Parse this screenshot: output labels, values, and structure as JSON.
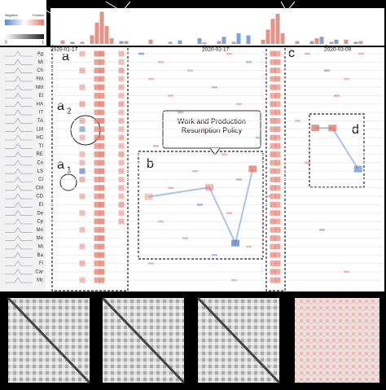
{
  "legend": {
    "negative": "Negative",
    "positive": "Positive",
    "scale_min": "0",
    "scale_max": "1"
  },
  "timeline": {
    "ylim": [
      0,
      50
    ],
    "positive": [
      0,
      0,
      5,
      0,
      0,
      0,
      3,
      0,
      12,
      30,
      45,
      25,
      8,
      0,
      0,
      4,
      0,
      0,
      0,
      0,
      6,
      0,
      0,
      0,
      3,
      0,
      0,
      0,
      0,
      0,
      0,
      2,
      0,
      0,
      4,
      0,
      0,
      3,
      0,
      0,
      5,
      0,
      0,
      6,
      20,
      35,
      42,
      15,
      0,
      0,
      4,
      0,
      0,
      0,
      8,
      0,
      0,
      3,
      0,
      0,
      6,
      0,
      0,
      4,
      0,
      0,
      0,
      0
    ],
    "negative": [
      0,
      0,
      0,
      0,
      3,
      0,
      0,
      0,
      0,
      0,
      0,
      0,
      0,
      0,
      4,
      0,
      0,
      0,
      0,
      0,
      0,
      0,
      0,
      0,
      0,
      0,
      5,
      0,
      0,
      0,
      8,
      0,
      0,
      0,
      0,
      10,
      0,
      0,
      15,
      0,
      12,
      0,
      0,
      0,
      0,
      0,
      0,
      0,
      0,
      0,
      0,
      0,
      0,
      4,
      0,
      10,
      0,
      0,
      6,
      0,
      0,
      0,
      3,
      0,
      0,
      0,
      0,
      0
    ]
  },
  "date_labels": [
    {
      "day": 0,
      "label": "2020-01-17"
    },
    {
      "day": 31,
      "label": "2020-02-17"
    },
    {
      "day": 56,
      "label": "2020-03-09"
    }
  ],
  "rows": [
    "Ag",
    "Mi",
    "Ch",
    "FM",
    "NM",
    "El",
    "HA",
    "IT",
    "TA",
    "LM",
    "HC",
    "TI",
    "RE",
    "Co",
    "LS",
    "CI",
    "CM",
    "CD",
    "El",
    "De",
    "Cp",
    "Mo",
    "Me",
    "Mi",
    "Ba",
    "Fi",
    "Car",
    "Mc"
  ],
  "columns": [
    {
      "day": 6,
      "values": [
        0.3,
        null,
        0.4,
        null,
        0.3,
        null,
        0.5,
        null,
        0.4,
        -0.5,
        0.3,
        null,
        0.3,
        0.3,
        -0.7,
        0.4,
        null,
        0.3,
        null,
        0.3,
        null,
        0.3,
        null,
        0.3,
        null,
        0.4,
        null,
        0.3
      ]
    },
    {
      "day": 9,
      "values": [
        0.7,
        0.6,
        0.7,
        0.6,
        0.7,
        0.6,
        0.7,
        0.6,
        0.7,
        0.6,
        0.7,
        0.6,
        0.7,
        0.6,
        0.7,
        0.6,
        0.7,
        0.6,
        0.7,
        0.6,
        0.7,
        0.6,
        0.7,
        0.6,
        0.7,
        0.6,
        0.7,
        0.6
      ]
    },
    {
      "day": 10,
      "values": [
        0.8,
        0.7,
        0.8,
        0.7,
        0.8,
        0.7,
        0.8,
        0.7,
        0.8,
        0.7,
        0.8,
        0.7,
        0.8,
        0.7,
        0.8,
        0.7,
        0.8,
        0.7,
        0.8,
        0.7,
        0.8,
        0.7,
        0.8,
        0.7,
        0.8,
        0.7,
        0.8,
        0.7
      ]
    },
    {
      "day": 14,
      "values": [
        0.4,
        0.3,
        0.5,
        0.3,
        0.4,
        0.3,
        0.5,
        0.3,
        0.4,
        0.3,
        0.4,
        0.3,
        0.5,
        0.3,
        0.4,
        0.3,
        0.4,
        0.3,
        0.5,
        0.3,
        0.4,
        null,
        null,
        null,
        null,
        null,
        null,
        null
      ]
    },
    {
      "day": 45,
      "values": [
        0.6,
        0.5,
        0.6,
        0.5,
        0.6,
        0.5,
        0.6,
        0.5,
        0.6,
        0.5,
        0.6,
        0.5,
        0.6,
        0.5,
        0.6,
        0.5,
        0.6,
        0.5,
        0.6,
        0.5,
        0.6,
        0.5,
        0.6,
        0.5,
        0.6,
        0.5,
        0.6,
        0.5
      ]
    },
    {
      "day": 46,
      "values": [
        0.5,
        0.6,
        0.5,
        0.6,
        0.5,
        0.6,
        0.5,
        0.6,
        0.5,
        0.6,
        0.5,
        0.6,
        0.5,
        0.6,
        0.5,
        0.6,
        0.5,
        0.6,
        0.5,
        0.6,
        0.5,
        0.6,
        0.5,
        0.6,
        0.5,
        0.6,
        0.5,
        0.6
      ]
    }
  ],
  "cells": [
    [
      0,
      18,
      -0.6
    ],
    [
      0,
      36,
      0.3
    ],
    [
      0,
      52,
      0.3
    ],
    [
      0,
      63,
      0.3
    ],
    [
      1,
      22,
      0.3
    ],
    [
      1,
      40,
      -0.3
    ],
    [
      2,
      28,
      0.3
    ],
    [
      2,
      56,
      -0.4
    ],
    [
      3,
      20,
      0.3
    ],
    [
      3,
      60,
      0.3
    ],
    [
      4,
      33,
      -0.3
    ],
    [
      5,
      24,
      0.3
    ],
    [
      5,
      58,
      0.4
    ],
    [
      6,
      38,
      0.3
    ],
    [
      7,
      26,
      -0.3
    ],
    [
      8,
      50,
      0.3
    ],
    [
      9,
      31,
      0.3
    ],
    [
      10,
      42,
      -0.3
    ],
    [
      11,
      21,
      0.3
    ],
    [
      12,
      35,
      0.3
    ],
    [
      13,
      52,
      0.4
    ],
    [
      14,
      29,
      0.3
    ],
    [
      15,
      38,
      -0.3
    ],
    [
      16,
      24,
      0.3
    ],
    [
      17,
      44,
      0.3
    ],
    [
      18,
      30,
      -0.4
    ],
    [
      19,
      36,
      0.3
    ],
    [
      20,
      22,
      0.3
    ],
    [
      21,
      55,
      -0.3
    ],
    [
      22,
      27,
      0.3
    ],
    [
      23,
      40,
      0.3
    ],
    [
      24,
      33,
      -0.3
    ],
    [
      25,
      20,
      0.3
    ],
    [
      26,
      60,
      0.3
    ],
    [
      27,
      37,
      0.3
    ]
  ],
  "inset_b": {
    "x": [
      0,
      7,
      10,
      12
    ],
    "values": [
      0.2,
      0.4,
      -0.8,
      0.8
    ],
    "xlim": [
      -1,
      13
    ],
    "ylim": [
      -1,
      1
    ]
  },
  "inset_d": {
    "x": [
      0,
      2,
      5
    ],
    "values": [
      0.8,
      0.8,
      -0.6
    ],
    "xlim": [
      -0.5,
      5.5
    ],
    "ylim": [
      -1,
      1
    ]
  },
  "callout": "Work and Production Resumption Policy",
  "labels": {
    "a": "a",
    "a2": "a",
    "a2_sub": "2",
    "a1": "a",
    "a1_sub": "1",
    "b": "b",
    "c": "c",
    "d": "d"
  }
}
